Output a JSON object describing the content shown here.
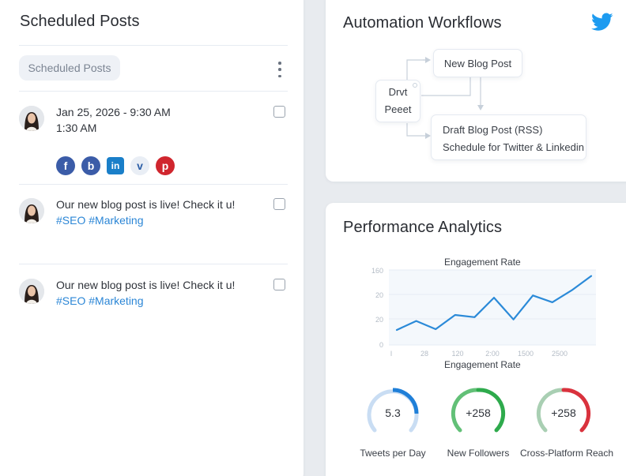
{
  "scheduled": {
    "title": "Scheduled Posts",
    "filter_chip": "Scheduled Posts",
    "posts": [
      {
        "line1": "Jan 25, 2026 - 9:30 AM",
        "line2": "1:30 AM",
        "tags": "",
        "checked": false,
        "socials": [
          {
            "name": "facebook",
            "glyph": "f",
            "color": "#3b5ca8"
          },
          {
            "name": "blogger",
            "glyph": "b",
            "color": "#3b5ca8"
          },
          {
            "name": "linkedin",
            "glyph": "in",
            "color": "#1a7fc9"
          },
          {
            "name": "vimeo",
            "glyph": "v",
            "color": "#e9eef5"
          },
          {
            "name": "pinterest",
            "glyph": "p",
            "color": "#d0262e"
          }
        ]
      },
      {
        "line1": "Our new blog post is live! Check it u!",
        "line2": "",
        "tags": "#SEO #Marketing",
        "checked": false
      },
      {
        "line1": "Our new blog post is live! Check it u!",
        "line2": "",
        "tags": "#SEO #Marketing",
        "checked": false
      }
    ]
  },
  "automation": {
    "title": "Automation Workflows",
    "nodes": {
      "new_blog_post": "New Blog Post",
      "draft_line1": "Drvt",
      "draft_line2": "Peeet",
      "rss_line1": "Draft Blog Post (RSS)",
      "rss_line2": "Schedule for Twitter & Linkedin"
    },
    "brand_color": "#1d9bf0"
  },
  "performance": {
    "title": "Performance Analytics",
    "gauges": [
      {
        "value": "5.3",
        "label": "Tweets per Day",
        "track": "#c9ddf3",
        "fill": "#1f7fd8"
      },
      {
        "value": "+258",
        "label": "New Followers",
        "track": "#7cc98a",
        "fill": "#2eaa4c"
      },
      {
        "value": "+258",
        "label": "Cross-Platform Reach",
        "track": "#a9cfb3",
        "fill": "#d9323d"
      }
    ]
  },
  "chart_data": {
    "type": "line",
    "title": "Engagement Rate",
    "xlabel": "Engagement Rate",
    "ylabel": "",
    "y_tick_labels": [
      "0",
      "20",
      "20",
      "160"
    ],
    "x_tick_labels": [
      "I",
      "28",
      "120",
      "2:00",
      "1500",
      "2500"
    ],
    "series": [
      {
        "name": "Engagement Rate",
        "color": "#2b8ad8",
        "values": [
          20,
          32,
          21,
          40,
          37,
          63,
          34,
          66,
          57,
          73,
          92
        ]
      }
    ],
    "ylim": [
      0,
      100
    ],
    "grid": true,
    "legend": "none"
  }
}
